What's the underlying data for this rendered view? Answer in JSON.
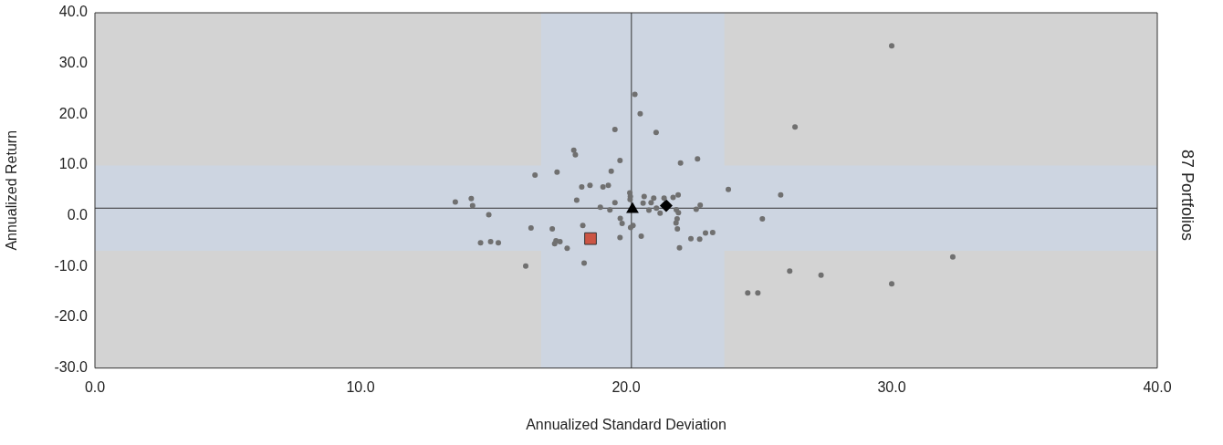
{
  "chart_data": {
    "type": "scatter",
    "xlabel": "Annualized Standard Deviation",
    "ylabel": "Annualized Return",
    "annotations": [
      "87 Portfolios"
    ],
    "xlim": [
      0,
      40
    ],
    "xticks": [
      {
        "value": 0,
        "label": "0.0"
      },
      {
        "value": 10,
        "label": "10.0"
      },
      {
        "value": 20,
        "label": "20.0"
      },
      {
        "value": 30,
        "label": "30.0"
      },
      {
        "value": 40,
        "label": "40.0"
      }
    ],
    "ylim": [
      -30,
      40
    ],
    "yticks": [
      {
        "value": -30,
        "label": "-30.0"
      },
      {
        "value": -20,
        "label": "-20.0"
      },
      {
        "value": -10,
        "label": "-10.0"
      },
      {
        "value": 0,
        "label": "0.0"
      },
      {
        "value": 10,
        "label": "10.0"
      },
      {
        "value": 20,
        "label": "20.0"
      },
      {
        "value": 30,
        "label": "30.0"
      },
      {
        "value": 40,
        "label": "40.0"
      }
    ],
    "grid": false,
    "legend": false,
    "bands": [
      {
        "axis": "x",
        "from": 16.8,
        "to": 23.7,
        "color": "#cdd5e1"
      },
      {
        "axis": "y",
        "from": -6.9,
        "to": 9.9,
        "color": "#cdd5e1"
      }
    ],
    "ref_lines": [
      {
        "axis": "x",
        "value": 20.2,
        "color": "#333333"
      },
      {
        "axis": "y",
        "value": 1.5,
        "color": "#333333"
      }
    ],
    "series": [
      {
        "type": "scatter",
        "color": "#707070",
        "marker": "circle",
        "x": [
          20.33,
          20.53,
          19.58,
          21.13,
          18.03,
          18.09,
          19.77,
          22.05,
          22.69,
          16.57,
          17.4,
          19.44,
          18.33,
          18.64,
          19.13,
          19.33,
          23.85,
          13.57,
          14.17,
          14.22,
          18.14,
          20.14,
          20.16,
          20.15,
          20.68,
          21.04,
          21.43,
          21.77,
          21.96,
          20.64,
          20.94,
          19.58,
          19.03,
          19.39,
          20.86,
          21.14,
          21.28,
          21.89,
          21.97,
          22.64,
          22.79,
          14.83,
          19.78,
          19.85,
          20.17,
          20.26,
          21.92,
          21.88,
          21.93,
          16.42,
          17.22,
          18.37,
          20.57,
          19.77,
          22.44,
          22.77,
          22.99,
          23.26,
          22.01,
          14.52,
          14.9,
          15.19,
          17.36,
          17.51,
          17.31,
          17.78,
          16.22,
          18.42,
          30.0,
          26.36,
          25.82,
          25.13,
          26.16,
          27.34,
          24.58,
          24.96,
          30.0,
          32.3
        ],
        "values": [
          23.9,
          20.1,
          17.0,
          16.4,
          12.9,
          12.0,
          10.9,
          10.4,
          11.2,
          8.0,
          8.6,
          8.8,
          5.7,
          6.0,
          5.7,
          6.0,
          5.2,
          2.7,
          3.4,
          2.0,
          3.1,
          4.5,
          3.8,
          3.2,
          3.8,
          3.5,
          3.5,
          3.6,
          4.1,
          2.5,
          2.6,
          2.6,
          1.7,
          1.15,
          1.1,
          1.5,
          0.5,
          1.2,
          0.6,
          1.3,
          2.1,
          0.2,
          -0.5,
          -1.5,
          -2.3,
          -1.9,
          -0.6,
          -1.4,
          -2.6,
          -2.4,
          -2.6,
          -1.9,
          -4.0,
          -4.3,
          -4.5,
          -4.6,
          -3.4,
          -3.3,
          -6.3,
          -5.3,
          -5.1,
          -5.3,
          -4.9,
          -5.1,
          -5.5,
          -6.4,
          -9.9,
          -9.3,
          33.5,
          17.5,
          4.1,
          -0.6,
          -10.9,
          -11.7,
          -15.2,
          -15.2,
          -13.4,
          -8.1
        ]
      },
      {
        "type": "scatter",
        "color": "#000000",
        "marker": "triangle",
        "x": [
          20.24
        ],
        "values": [
          1.3
        ]
      },
      {
        "type": "scatter",
        "color": "#000000",
        "marker": "diamond",
        "x": [
          21.51
        ],
        "values": [
          2.0
        ]
      },
      {
        "type": "scatter",
        "color": "#cc5544",
        "marker": "square",
        "x": [
          18.66
        ],
        "values": [
          -4.5
        ]
      }
    ]
  }
}
